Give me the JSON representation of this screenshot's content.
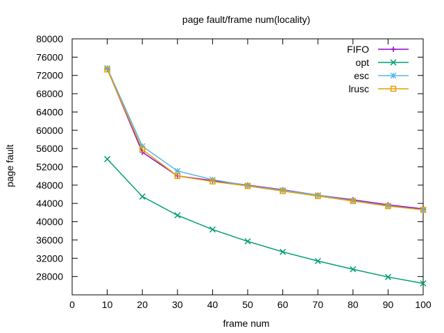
{
  "chart_data": {
    "type": "line",
    "title": "page fault/frame num(locality)",
    "xlabel": "frame num",
    "ylabel": "page fault",
    "xlim": [
      0,
      100
    ],
    "ylim": [
      24000,
      80000
    ],
    "xticks": [
      0,
      10,
      20,
      30,
      40,
      50,
      60,
      70,
      80,
      90,
      100
    ],
    "yticks": [
      28000,
      32000,
      36000,
      40000,
      44000,
      48000,
      52000,
      56000,
      60000,
      64000,
      68000,
      72000,
      76000,
      80000
    ],
    "grid": false,
    "legend_position": "top-right",
    "x": [
      10,
      20,
      30,
      40,
      50,
      60,
      70,
      80,
      90,
      100
    ],
    "series": [
      {
        "name": "FIFO",
        "color": "#9400d3",
        "marker": "plus",
        "values": [
          73400,
          55200,
          50000,
          49000,
          48000,
          47000,
          45800,
          44800,
          43700,
          42800
        ]
      },
      {
        "name": "opt",
        "color": "#009e73",
        "marker": "cross",
        "values": [
          53700,
          45500,
          41400,
          38300,
          35700,
          33400,
          31400,
          29600,
          27900,
          26500
        ]
      },
      {
        "name": "esc",
        "color": "#56b4e9",
        "marker": "star",
        "values": [
          73600,
          56500,
          51100,
          49200,
          47900,
          46900,
          45800,
          44600,
          43500,
          42600
        ]
      },
      {
        "name": "lrusc",
        "color": "#e69f00",
        "marker": "square",
        "values": [
          73300,
          55800,
          50000,
          48800,
          47800,
          46700,
          45600,
          44500,
          43400,
          42600
        ]
      }
    ]
  }
}
